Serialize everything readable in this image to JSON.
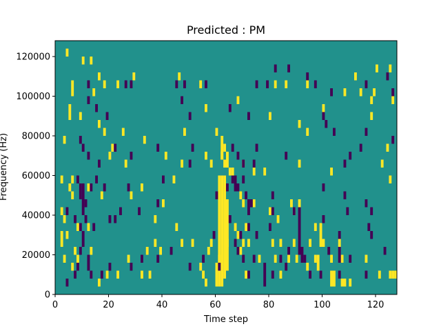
{
  "chart_data": {
    "type": "heatmap",
    "title": "Predicted : PM",
    "xlabel": "Time step",
    "ylabel": "Frequency (Hz)",
    "xlim": [
      0,
      128
    ],
    "ylim": [
      0,
      128000
    ],
    "x_ticks": [
      0,
      20,
      40,
      60,
      80,
      100,
      120
    ],
    "y_ticks": [
      0,
      20000,
      40000,
      60000,
      80000,
      100000,
      120000
    ],
    "grid": false,
    "colors": {
      "background": "#21918c",
      "low": "#440154",
      "high": "#fde725"
    },
    "cell_height_hz": 4000,
    "high_cells": [
      [
        4,
        120000
      ],
      [
        10,
        116000
      ],
      [
        6,
        104000
      ],
      [
        6,
        100000
      ],
      [
        13,
        116000
      ],
      [
        14,
        100000
      ],
      [
        16,
        108000
      ],
      [
        18,
        104000
      ],
      [
        23,
        104000
      ],
      [
        29,
        108000
      ],
      [
        46,
        108000
      ],
      [
        54,
        104000
      ],
      [
        68,
        96000
      ],
      [
        82,
        104000
      ],
      [
        86,
        104000
      ],
      [
        94,
        104000
      ],
      [
        108,
        100000
      ],
      [
        112,
        108000
      ],
      [
        114,
        100000
      ],
      [
        119,
        100000
      ],
      [
        120,
        112000
      ],
      [
        125,
        112000
      ],
      [
        126,
        96000
      ],
      [
        5,
        88000
      ],
      [
        5,
        92000
      ],
      [
        9,
        88000
      ],
      [
        16,
        84000
      ],
      [
        18,
        80000
      ],
      [
        21,
        72000
      ],
      [
        25,
        80000
      ],
      [
        33,
        76000
      ],
      [
        48,
        80000
      ],
      [
        56,
        92000
      ],
      [
        60,
        80000
      ],
      [
        62,
        76000
      ],
      [
        58,
        64000
      ],
      [
        62,
        68000
      ],
      [
        63,
        64000
      ],
      [
        63,
        72000
      ],
      [
        64,
        64000
      ],
      [
        64,
        68000
      ],
      [
        65,
        60000
      ],
      [
        66,
        60000
      ],
      [
        70,
        64000
      ],
      [
        80,
        88000
      ],
      [
        91,
        84000
      ],
      [
        94,
        80000
      ],
      [
        100,
        92000
      ],
      [
        118,
        96000
      ],
      [
        118,
        88000
      ],
      [
        124,
        72000
      ],
      [
        3,
        76000
      ],
      [
        20,
        68000
      ],
      [
        26,
        64000
      ],
      [
        41,
        68000
      ],
      [
        47,
        64000
      ],
      [
        56,
        68000
      ],
      [
        62,
        68000
      ],
      [
        62,
        72000
      ],
      [
        74,
        60000
      ],
      [
        78,
        60000
      ],
      [
        91,
        64000
      ],
      [
        103,
        60000
      ],
      [
        122,
        64000
      ],
      [
        125,
        56000
      ],
      [
        2,
        56000
      ],
      [
        5,
        52000
      ],
      [
        6,
        56000
      ],
      [
        6,
        48000
      ],
      [
        12,
        52000
      ],
      [
        17,
        48000
      ],
      [
        28,
        48000
      ],
      [
        32,
        52000
      ],
      [
        40,
        44000
      ],
      [
        44,
        56000
      ],
      [
        60,
        4000
      ],
      [
        60,
        8000
      ],
      [
        60,
        12000
      ],
      [
        61,
        4000
      ],
      [
        61,
        8000
      ],
      [
        61,
        12000
      ],
      [
        61,
        16000
      ],
      [
        61,
        20000
      ],
      [
        61,
        24000
      ],
      [
        61,
        28000
      ],
      [
        61,
        32000
      ],
      [
        61,
        36000
      ],
      [
        61,
        40000
      ],
      [
        61,
        44000
      ],
      [
        61,
        48000
      ],
      [
        61,
        52000
      ],
      [
        61,
        56000
      ],
      [
        62,
        4000
      ],
      [
        62,
        8000
      ],
      [
        62,
        12000
      ],
      [
        62,
        16000
      ],
      [
        62,
        20000
      ],
      [
        62,
        24000
      ],
      [
        62,
        28000
      ],
      [
        62,
        32000
      ],
      [
        62,
        36000
      ],
      [
        62,
        40000
      ],
      [
        62,
        44000
      ],
      [
        62,
        48000
      ],
      [
        62,
        52000
      ],
      [
        62,
        56000
      ],
      [
        63,
        8000
      ],
      [
        63,
        12000
      ],
      [
        63,
        16000
      ],
      [
        63,
        20000
      ],
      [
        63,
        24000
      ],
      [
        63,
        28000
      ],
      [
        63,
        32000
      ],
      [
        63,
        36000
      ],
      [
        63,
        40000
      ],
      [
        63,
        44000
      ],
      [
        63,
        48000
      ],
      [
        63,
        52000
      ],
      [
        63,
        56000
      ],
      [
        64,
        12000
      ],
      [
        64,
        16000
      ],
      [
        64,
        20000
      ],
      [
        64,
        24000
      ],
      [
        64,
        28000
      ],
      [
        64,
        32000
      ],
      [
        64,
        36000
      ],
      [
        64,
        40000
      ],
      [
        64,
        44000
      ],
      [
        69,
        48000
      ],
      [
        70,
        44000
      ],
      [
        74,
        44000
      ],
      [
        80,
        40000
      ],
      [
        83,
        36000
      ],
      [
        88,
        44000
      ],
      [
        89,
        40000
      ],
      [
        91,
        44000
      ],
      [
        2,
        40000
      ],
      [
        3,
        36000
      ],
      [
        4,
        28000
      ],
      [
        8,
        32000
      ],
      [
        12,
        32000
      ],
      [
        37,
        36000
      ],
      [
        45,
        32000
      ],
      [
        67,
        32000
      ],
      [
        68,
        28000
      ],
      [
        71,
        32000
      ],
      [
        97,
        32000
      ],
      [
        99,
        28000
      ],
      [
        99,
        32000
      ],
      [
        99,
        24000
      ],
      [
        100,
        24000
      ],
      [
        2,
        28000
      ],
      [
        2,
        24000
      ],
      [
        7,
        20000
      ],
      [
        13,
        20000
      ],
      [
        37,
        24000
      ],
      [
        47,
        24000
      ],
      [
        51,
        24000
      ],
      [
        58,
        24000
      ],
      [
        64,
        24000
      ],
      [
        70,
        24000
      ],
      [
        72,
        24000
      ],
      [
        81,
        24000
      ],
      [
        84,
        24000
      ],
      [
        89,
        24000
      ],
      [
        95,
        24000
      ],
      [
        106,
        24000
      ],
      [
        3,
        16000
      ],
      [
        8,
        16000
      ],
      [
        27,
        16000
      ],
      [
        34,
        20000
      ],
      [
        39,
        20000
      ],
      [
        57,
        20000
      ],
      [
        61,
        16000
      ],
      [
        69,
        20000
      ],
      [
        76,
        16000
      ],
      [
        82,
        16000
      ],
      [
        87,
        16000
      ],
      [
        90,
        16000
      ],
      [
        97,
        16000
      ],
      [
        98,
        16000
      ],
      [
        98,
        12000
      ],
      [
        103,
        16000
      ],
      [
        107,
        16000
      ],
      [
        116,
        16000
      ],
      [
        6,
        12000
      ],
      [
        16,
        4000
      ],
      [
        19,
        8000
      ],
      [
        23,
        8000
      ],
      [
        32,
        8000
      ],
      [
        35,
        8000
      ],
      [
        54,
        12000
      ],
      [
        55,
        8000
      ],
      [
        56,
        4000
      ],
      [
        71,
        8000
      ],
      [
        84,
        8000
      ],
      [
        94,
        12000
      ],
      [
        103,
        4000
      ],
      [
        104,
        4000
      ],
      [
        107,
        4000
      ],
      [
        108,
        4000
      ],
      [
        110,
        4000
      ],
      [
        121,
        8000
      ],
      [
        125,
        8000
      ],
      [
        126,
        8000
      ],
      [
        127,
        8000
      ],
      [
        103,
        8000
      ],
      [
        104,
        8000
      ]
    ],
    "low_cells": [
      [
        12,
        104000
      ],
      [
        12,
        96000
      ],
      [
        26,
        104000
      ],
      [
        28,
        104000
      ],
      [
        45,
        104000
      ],
      [
        48,
        104000
      ],
      [
        56,
        104000
      ],
      [
        75,
        104000
      ],
      [
        79,
        104000
      ],
      [
        94,
        108000
      ],
      [
        97,
        104000
      ],
      [
        103,
        100000
      ],
      [
        124,
        108000
      ],
      [
        126,
        100000
      ],
      [
        82,
        112000
      ],
      [
        87,
        112000
      ],
      [
        116,
        104000
      ],
      [
        128,
        104000
      ],
      [
        15,
        92000
      ],
      [
        19,
        88000
      ],
      [
        47,
        96000
      ],
      [
        50,
        88000
      ],
      [
        65,
        92000
      ],
      [
        72,
        88000
      ],
      [
        100,
        88000
      ],
      [
        101,
        84000
      ],
      [
        104,
        80000
      ],
      [
        116,
        80000
      ],
      [
        126,
        76000
      ],
      [
        9,
        76000
      ],
      [
        10,
        72000
      ],
      [
        12,
        68000
      ],
      [
        16,
        64000
      ],
      [
        22,
        72000
      ],
      [
        28,
        68000
      ],
      [
        38,
        72000
      ],
      [
        50,
        64000
      ],
      [
        51,
        72000
      ],
      [
        66,
        72000
      ],
      [
        68,
        68000
      ],
      [
        70,
        64000
      ],
      [
        74,
        64000
      ],
      [
        75,
        72000
      ],
      [
        86,
        68000
      ],
      [
        108,
        64000
      ],
      [
        110,
        68000
      ],
      [
        114,
        72000
      ],
      [
        8,
        56000
      ],
      [
        9,
        52000
      ],
      [
        9,
        48000
      ],
      [
        10,
        44000
      ],
      [
        10,
        40000
      ],
      [
        10,
        48000
      ],
      [
        10,
        52000
      ],
      [
        11,
        36000
      ],
      [
        11,
        44000
      ],
      [
        13,
        52000
      ],
      [
        15,
        56000
      ],
      [
        18,
        52000
      ],
      [
        24,
        40000
      ],
      [
        27,
        52000
      ],
      [
        40,
        56000
      ],
      [
        60,
        48000
      ],
      [
        64,
        52000
      ],
      [
        66,
        56000
      ],
      [
        67,
        52000
      ],
      [
        67,
        56000
      ],
      [
        68,
        52000
      ],
      [
        70,
        56000
      ],
      [
        71,
        48000
      ],
      [
        72,
        40000
      ],
      [
        72,
        44000
      ],
      [
        73,
        44000
      ],
      [
        81,
        48000
      ],
      [
        89,
        40000
      ],
      [
        100,
        52000
      ],
      [
        108,
        48000
      ],
      [
        116,
        44000
      ],
      [
        118,
        40000
      ],
      [
        4,
        40000
      ],
      [
        7,
        36000
      ],
      [
        9,
        32000
      ],
      [
        10,
        28000
      ],
      [
        10,
        24000
      ],
      [
        9,
        20000
      ],
      [
        12,
        16000
      ],
      [
        14,
        32000
      ],
      [
        20,
        36000
      ],
      [
        22,
        36000
      ],
      [
        31,
        40000
      ],
      [
        38,
        44000
      ],
      [
        59,
        28000
      ],
      [
        65,
        36000
      ],
      [
        67,
        24000
      ],
      [
        69,
        28000
      ],
      [
        72,
        32000
      ],
      [
        75,
        28000
      ],
      [
        80,
        32000
      ],
      [
        81,
        40000
      ],
      [
        87,
        20000
      ],
      [
        91,
        20000
      ],
      [
        91,
        24000
      ],
      [
        91,
        28000
      ],
      [
        91,
        32000
      ],
      [
        91,
        36000
      ],
      [
        91,
        40000
      ],
      [
        92,
        20000
      ],
      [
        92,
        16000
      ],
      [
        93,
        16000
      ],
      [
        100,
        36000
      ],
      [
        102,
        20000
      ],
      [
        106,
        28000
      ],
      [
        106,
        20000
      ],
      [
        106,
        16000
      ],
      [
        109,
        40000
      ],
      [
        117,
        32000
      ],
      [
        118,
        28000
      ],
      [
        123,
        20000
      ],
      [
        4,
        4000
      ],
      [
        7,
        8000
      ],
      [
        8,
        12000
      ],
      [
        12,
        12000
      ],
      [
        13,
        8000
      ],
      [
        17,
        8000
      ],
      [
        20,
        12000
      ],
      [
        28,
        12000
      ],
      [
        32,
        16000
      ],
      [
        38,
        16000
      ],
      [
        43,
        20000
      ],
      [
        50,
        12000
      ],
      [
        55,
        16000
      ],
      [
        61,
        12000
      ],
      [
        68,
        20000
      ],
      [
        70,
        16000
      ],
      [
        72,
        8000
      ],
      [
        74,
        16000
      ],
      [
        78,
        12000
      ],
      [
        78,
        8000
      ],
      [
        78,
        4000
      ],
      [
        81,
        8000
      ],
      [
        84,
        16000
      ],
      [
        86,
        12000
      ],
      [
        95,
        8000
      ],
      [
        99,
        8000
      ],
      [
        106,
        8000
      ],
      [
        110,
        16000
      ],
      [
        116,
        8000
      ]
    ]
  }
}
